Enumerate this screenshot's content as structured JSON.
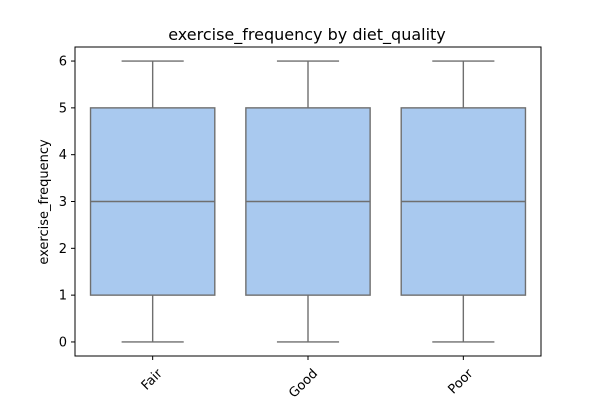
{
  "chart_data": {
    "type": "box",
    "title": "exercise_frequency by diet_quality",
    "xlabel": "",
    "ylabel": "exercise_frequency",
    "categories": [
      "Fair",
      "Good",
      "Poor"
    ],
    "boxes": [
      {
        "category": "Fair",
        "whisker_low": 0,
        "q1": 1,
        "median": 3,
        "q3": 5,
        "whisker_high": 6
      },
      {
        "category": "Good",
        "whisker_low": 0,
        "q1": 1,
        "median": 3,
        "q3": 5,
        "whisker_high": 6
      },
      {
        "category": "Poor",
        "whisker_low": 0,
        "q1": 1,
        "median": 3,
        "q3": 5,
        "whisker_high": 6
      }
    ],
    "yticks": [
      0,
      1,
      2,
      3,
      4,
      5,
      6
    ],
    "ylim": [
      -0.3,
      6.3
    ],
    "grid": false,
    "colors": {
      "box_fill": "#a9c9ef",
      "line": "#6f6f6f",
      "axis": "#000000"
    }
  }
}
